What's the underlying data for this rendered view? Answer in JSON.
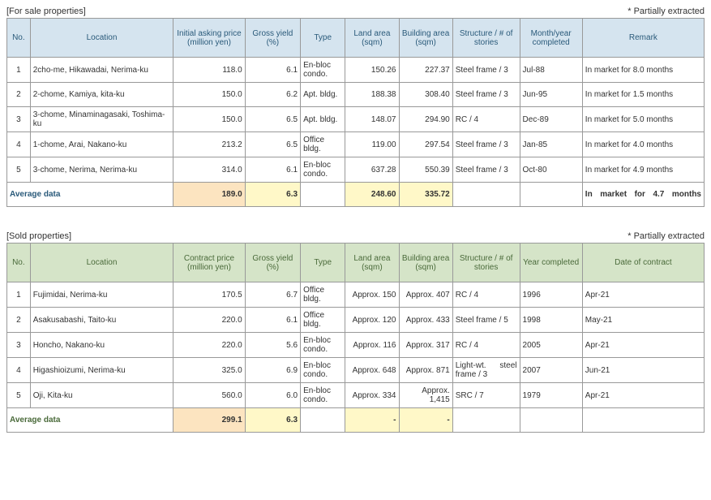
{
  "sale": {
    "title": "[For sale properties]",
    "note": "* Partially extracted",
    "headers": {
      "no": "No.",
      "location": "Location",
      "price": "Initial asking price (million yen)",
      "yield": "Gross yield (%)",
      "type": "Type",
      "land": "Land area (sqm)",
      "bldg": "Building area (sqm)",
      "struct": "Structure / # of stories",
      "date": "Month/year completed",
      "remark": "Remark"
    },
    "rows": [
      {
        "no": "1",
        "loc": "2cho-me, Hikawadai, Nerima-ku",
        "price": "118.0",
        "yield": "6.1",
        "type": "En-bloc condo.",
        "land": "150.26",
        "bldg": "227.37",
        "struct": "Steel frame / 3",
        "date": "Jul-88",
        "remark": "In market for 8.0 months"
      },
      {
        "no": "2",
        "loc": "2-chome, Kamiya, kita-ku",
        "price": "150.0",
        "yield": "6.2",
        "type": "Apt. bldg.",
        "land": "188.38",
        "bldg": "308.40",
        "struct": "Steel frame / 3",
        "date": "Jun-95",
        "remark": "In market for 1.5 months"
      },
      {
        "no": "3",
        "loc": "3-chome, Minaminagasaki, Toshima-ku",
        "price": "150.0",
        "yield": "6.5",
        "type": "Apt. bldg.",
        "land": "148.07",
        "bldg": "294.90",
        "struct": "RC / 4",
        "date": "Dec-89",
        "remark": "In market for 5.0 months"
      },
      {
        "no": "4",
        "loc": "1-chome, Arai, Nakano-ku",
        "price": "213.2",
        "yield": "6.5",
        "type": "Office bldg.",
        "land": "119.00",
        "bldg": "297.54",
        "struct": "Steel frame / 3",
        "date": "Jan-85",
        "remark": "In market for 4.0 months"
      },
      {
        "no": "5",
        "loc": "3-chome, Nerima, Nerima-ku",
        "price": "314.0",
        "yield": "6.1",
        "type": "En-bloc condo.",
        "land": "637.28",
        "bldg": "550.39",
        "struct": "Steel frame / 3",
        "date": "Oct-80",
        "remark": "In market for 4.9 months"
      }
    ],
    "avg": {
      "label": "Average data",
      "price": "189.0",
      "yield": "6.3",
      "type": "",
      "land": "248.60",
      "bldg": "335.72",
      "struct": "",
      "date": "",
      "remark": "In market for 4.7 months"
    }
  },
  "sold": {
    "title": "[Sold properties]",
    "note": "* Partially extracted",
    "headers": {
      "no": "No.",
      "location": "Location",
      "price": "Contract price (million yen)",
      "yield": "Gross yield (%)",
      "type": "Type",
      "land": "Land area (sqm)",
      "bldg": "Building area (sqm)",
      "struct": "Structure / # of stories",
      "date": "Year completed",
      "remark": "Date of contract"
    },
    "rows": [
      {
        "no": "1",
        "loc": "Fujimidai, Nerima-ku",
        "price": "170.5",
        "yield": "6.7",
        "type": "Office bldg.",
        "land": "Approx. 150",
        "bldg": "Approx. 407",
        "struct": "RC / 4",
        "date": "1996",
        "remark": "Apr-21"
      },
      {
        "no": "2",
        "loc": "Asakusabashi, Taito-ku",
        "price": "220.0",
        "yield": "6.1",
        "type": "Office bldg.",
        "land": "Approx. 120",
        "bldg": "Approx. 433",
        "struct": "Steel frame / 5",
        "date": "1998",
        "remark": "May-21"
      },
      {
        "no": "3",
        "loc": "Honcho, Nakano-ku",
        "price": "220.0",
        "yield": "5.6",
        "type": "En-bloc condo.",
        "land": "Approx. 116",
        "bldg": "Approx. 317",
        "struct": "RC / 4",
        "date": "2005",
        "remark": "Apr-21"
      },
      {
        "no": "4",
        "loc": "Higashioizumi, Nerima-ku",
        "price": "325.0",
        "yield": "6.9",
        "type": "En-bloc condo.",
        "land": "Approx. 648",
        "bldg": "Approx. 871",
        "struct": "Light-wt. steel frame / 3",
        "date": "2007",
        "remark": "Jun-21"
      },
      {
        "no": "5",
        "loc": "Oji, Kita-ku",
        "price": "560.0",
        "yield": "6.0",
        "type": "En-bloc condo.",
        "land": "Approx. 334",
        "bldg": "Approx. 1,415",
        "struct": "SRC / 7",
        "date": "1979",
        "remark": "Apr-21"
      }
    ],
    "avg": {
      "label": "Average data",
      "price": "299.1",
      "yield": "6.3",
      "type": "",
      "land": "-",
      "bldg": "-",
      "struct": "",
      "date": "",
      "remark": ""
    }
  }
}
